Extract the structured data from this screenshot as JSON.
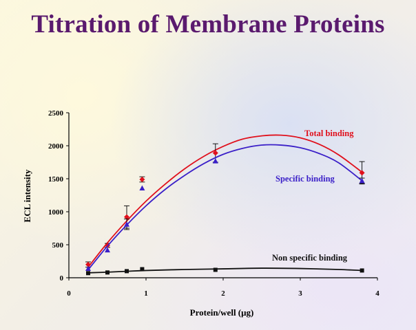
{
  "title": "Titration of Membrane Proteins",
  "colors": {
    "title": "#5a1a6e",
    "total": "#e0101c",
    "specific": "#3a1fc8",
    "nonspecific": "#111111"
  },
  "chart_data": {
    "type": "scatter",
    "xlabel": "Protein/well (μg)",
    "ylabel": "ECL intensity",
    "xlim": [
      0,
      4
    ],
    "ylim": [
      0,
      2500
    ],
    "xticks": [
      "0",
      "1",
      "2",
      "3",
      "4"
    ],
    "yticks": [
      "0",
      "500",
      "1000",
      "1500",
      "2000",
      "2500"
    ],
    "series": [
      {
        "name": "Total binding",
        "marker": "diamond",
        "color": "#e0101c",
        "x": [
          0.25,
          0.5,
          0.75,
          0.95,
          1.9,
          3.8
        ],
        "y": [
          200,
          490,
          920,
          1490,
          1890,
          1590
        ],
        "errors": [
          40,
          30,
          170,
          40,
          140,
          170
        ],
        "fit": [
          [
            0.25,
            160
          ],
          [
            0.5,
            530
          ],
          [
            0.75,
            860
          ],
          [
            1.0,
            1160
          ],
          [
            1.25,
            1420
          ],
          [
            1.5,
            1650
          ],
          [
            1.75,
            1840
          ],
          [
            2.0,
            1990
          ],
          [
            2.25,
            2100
          ],
          [
            2.5,
            2150
          ],
          [
            2.75,
            2160
          ],
          [
            3.0,
            2120
          ],
          [
            3.25,
            2020
          ],
          [
            3.5,
            1860
          ],
          [
            3.8,
            1600
          ]
        ]
      },
      {
        "name": "Specific binding",
        "marker": "triangle",
        "color": "#3a1fc8",
        "x": [
          0.25,
          0.5,
          0.75,
          0.95,
          1.9,
          3.8
        ],
        "y": [
          140,
          420,
          810,
          1360,
          1770,
          1470
        ],
        "errors": [
          0,
          0,
          80,
          0,
          0,
          40
        ],
        "fit": [
          [
            0.25,
            120
          ],
          [
            0.5,
            480
          ],
          [
            0.75,
            800
          ],
          [
            1.0,
            1090
          ],
          [
            1.25,
            1340
          ],
          [
            1.5,
            1550
          ],
          [
            1.75,
            1730
          ],
          [
            2.0,
            1870
          ],
          [
            2.25,
            1960
          ],
          [
            2.5,
            2010
          ],
          [
            2.75,
            2010
          ],
          [
            3.0,
            1970
          ],
          [
            3.25,
            1880
          ],
          [
            3.5,
            1740
          ],
          [
            3.8,
            1470
          ]
        ]
      },
      {
        "name": "Non specific binding",
        "marker": "square",
        "color": "#111111",
        "x": [
          0.25,
          0.5,
          0.75,
          0.95,
          1.9,
          3.8
        ],
        "y": [
          70,
          80,
          100,
          130,
          120,
          110
        ],
        "errors": [
          0,
          0,
          0,
          0,
          0,
          0
        ],
        "fit": [
          [
            0.25,
            75
          ],
          [
            0.5,
            85
          ],
          [
            0.75,
            98
          ],
          [
            1.0,
            110
          ],
          [
            1.5,
            125
          ],
          [
            2.0,
            135
          ],
          [
            2.5,
            145
          ],
          [
            3.0,
            140
          ],
          [
            3.5,
            125
          ],
          [
            3.8,
            110
          ]
        ]
      }
    ]
  }
}
